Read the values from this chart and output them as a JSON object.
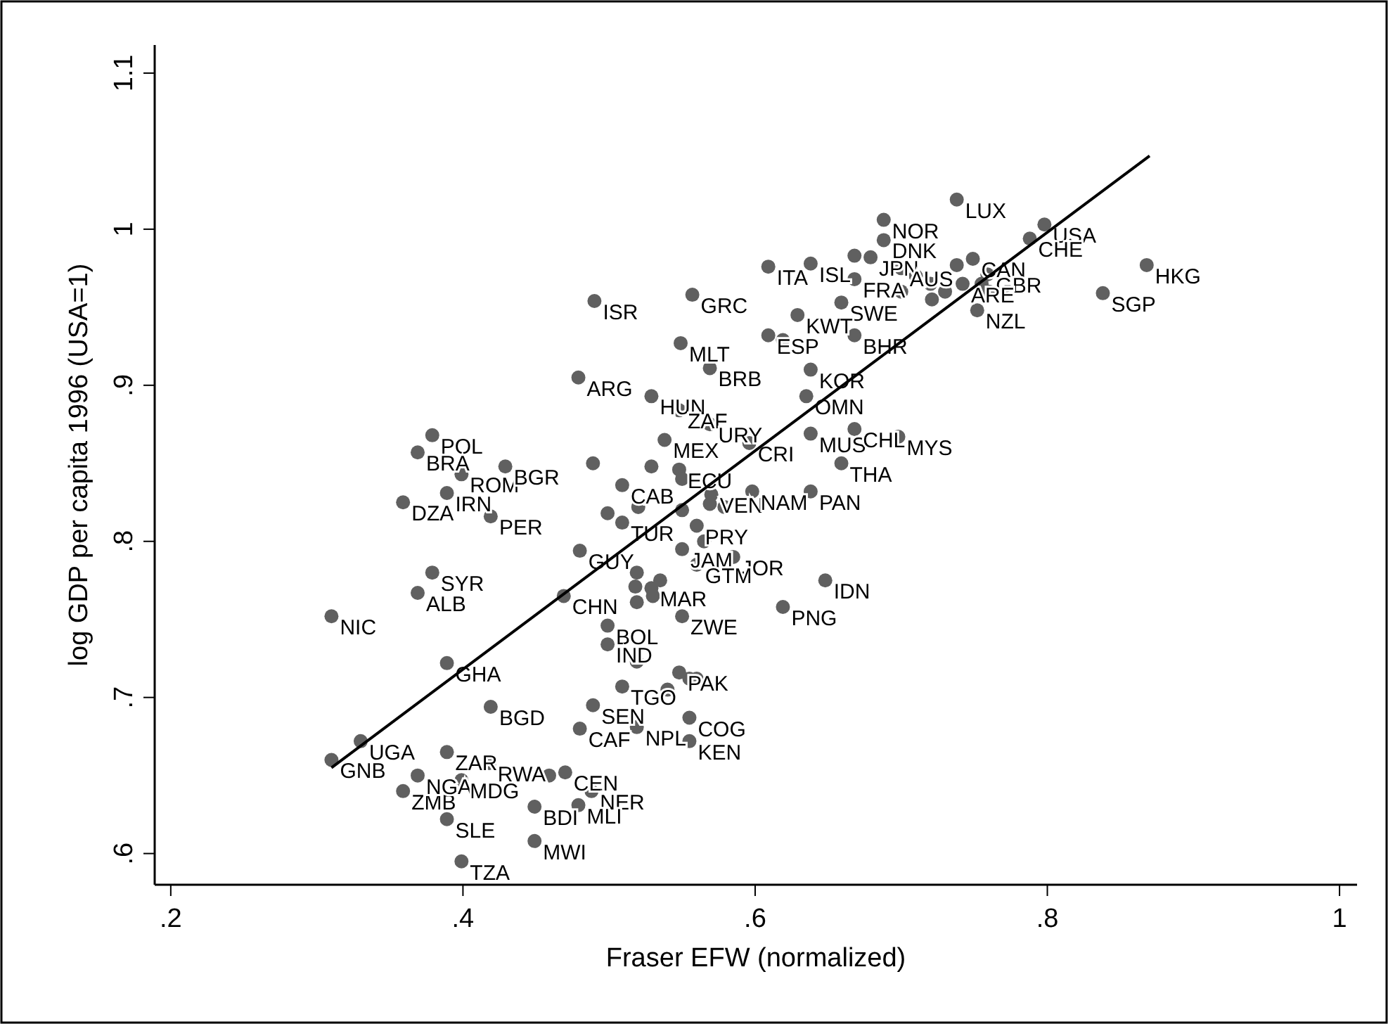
{
  "chart_data": {
    "type": "scatter",
    "xlabel": "Fraser EFW (normalized)",
    "ylabel": "log GDP per capita 1996 (USA=1)",
    "xlim": [
      0.189,
      1.012
    ],
    "ylim": [
      0.58,
      1.118
    ],
    "xticks": [
      {
        "value": 0.2,
        "label": ".2"
      },
      {
        "value": 0.4,
        "label": ".4"
      },
      {
        "value": 0.6,
        "label": ".6"
      },
      {
        "value": 0.8,
        "label": ".8"
      },
      1
    ],
    "yticks": [
      {
        "value": 0.6,
        "label": ".6"
      },
      {
        "value": 0.7,
        "label": ".7"
      },
      {
        "value": 0.8,
        "label": ".8"
      },
      {
        "value": 0.9,
        "label": ".9"
      },
      1,
      1.1
    ],
    "marker": "circle",
    "series": [
      {
        "color": "#606060",
        "x": [
          0.31,
          0.31,
          0.33,
          0.359,
          0.369,
          0.389,
          0.389,
          0.399,
          0.418,
          0.459,
          0.47,
          0.488,
          0.449,
          0.479,
          0.449,
          0.399,
          0.379,
          0.369,
          0.389,
          0.419,
          0.379,
          0.369,
          0.399,
          0.429,
          0.359,
          0.389,
          0.419,
          0.469,
          0.48,
          0.499,
          0.499,
          0.489,
          0.48,
          0.519,
          0.509,
          0.548,
          0.555,
          0.56,
          0.54,
          0.555,
          0.555,
          0.519,
          0.49,
          0.479,
          0.529,
          0.548,
          0.569,
          0.538,
          0.489,
          0.509,
          0.529,
          0.548,
          0.499,
          0.509,
          0.519,
          0.518,
          0.529,
          0.519,
          0.55,
          0.52,
          0.55,
          0.57,
          0.56,
          0.565,
          0.55,
          0.585,
          0.56,
          0.535,
          0.53,
          0.55,
          0.638,
          0.668,
          0.698,
          0.659,
          0.638,
          0.598,
          0.596,
          0.569,
          0.579,
          0.648,
          0.619,
          0.609,
          0.638,
          0.668,
          0.668,
          0.688,
          0.688,
          0.679,
          0.659,
          0.629,
          0.609,
          0.619,
          0.668,
          0.549,
          0.569,
          0.635,
          0.638,
          0.738,
          0.798,
          0.788,
          0.868,
          0.838,
          0.749,
          0.738,
          0.759,
          0.721,
          0.7,
          0.71,
          0.72,
          0.73,
          0.752,
          0.742,
          0.755,
          0.76,
          0.7,
          0.557
        ],
        "values": [
          0.752,
          0.66,
          0.672,
          0.64,
          0.65,
          0.665,
          0.622,
          0.647,
          0.658,
          0.65,
          0.652,
          0.64,
          0.63,
          0.631,
          0.608,
          0.595,
          0.78,
          0.767,
          0.722,
          0.694,
          0.868,
          0.857,
          0.843,
          0.848,
          0.825,
          0.831,
          0.816,
          0.765,
          0.794,
          0.746,
          0.734,
          0.695,
          0.68,
          0.681,
          0.707,
          0.716,
          0.712,
          0.712,
          0.705,
          0.687,
          0.672,
          0.723,
          0.954,
          0.905,
          0.893,
          0.884,
          0.875,
          0.865,
          0.85,
          0.836,
          0.848,
          0.846,
          0.818,
          0.812,
          0.78,
          0.771,
          0.77,
          0.761,
          0.84,
          0.822,
          0.82,
          0.83,
          0.81,
          0.8,
          0.795,
          0.79,
          0.785,
          0.775,
          0.765,
          0.752,
          0.869,
          0.872,
          0.867,
          0.85,
          0.832,
          0.832,
          0.863,
          0.824,
          0.822,
          0.775,
          0.758,
          0.976,
          0.978,
          0.968,
          0.983,
          1.006,
          0.993,
          0.982,
          0.953,
          0.945,
          0.932,
          0.929,
          0.932,
          0.927,
          0.911,
          0.893,
          0.91,
          1.019,
          1.003,
          0.994,
          0.977,
          0.959,
          0.981,
          0.977,
          0.971,
          0.955,
          0.975,
          0.97,
          0.965,
          0.96,
          0.948,
          0.965,
          0.965,
          0.96,
          0.96,
          0.958
        ],
        "value_labels": [
          "NIC",
          "GNB",
          "UGA",
          "ZMB",
          "NGA",
          "ZAR",
          "SLE",
          "MDG",
          "RWA",
          null,
          "CEN",
          "NER",
          "BDI",
          "MLI",
          "MWI",
          "TZA",
          "SYR",
          "ALB",
          "GHA",
          "BGD",
          "POL",
          "BRA",
          "ROM",
          "BGR",
          "DZA",
          "IRN",
          "PER",
          "CHN",
          "GUY",
          "BOL",
          "IND",
          "SEN",
          "CAF",
          "NPL",
          "TGO",
          "PAK",
          null,
          null,
          null,
          "COG",
          "KEN",
          null,
          "ISR",
          "ARG",
          "HUN",
          "ZAF",
          "URY",
          "MEX",
          null,
          "CAB",
          null,
          "ECU",
          null,
          "TUR",
          null,
          null,
          "MAR",
          null,
          null,
          null,
          null,
          "VEN",
          "PRY",
          null,
          "JAM",
          "JOR",
          "GTM",
          null,
          null,
          "ZWE",
          "MUS",
          "CHL",
          "MYS",
          "THA",
          "PAN",
          "NAM",
          "CRI",
          null,
          null,
          "IDN",
          "PNG",
          "ITA",
          "ISL",
          "FRA",
          null,
          "NOR",
          "DNK",
          "JPN",
          "SWE",
          "KWT",
          "ESP",
          null,
          "BHR",
          "MLT",
          "BRB",
          "OMN",
          "KOR",
          "LUX",
          "USA",
          "CHE",
          "HKG",
          "SGP",
          "CAN",
          null,
          "GBR",
          null,
          "AUS",
          null,
          null,
          null,
          "NZL",
          "ARE",
          null,
          null,
          null,
          "GRC"
        ]
      },
      {
        "type": "line",
        "color": "#000000",
        "x": [
          0.31,
          0.87
        ],
        "values": [
          0.655,
          1.047
        ],
        "marker": "none"
      }
    ]
  }
}
